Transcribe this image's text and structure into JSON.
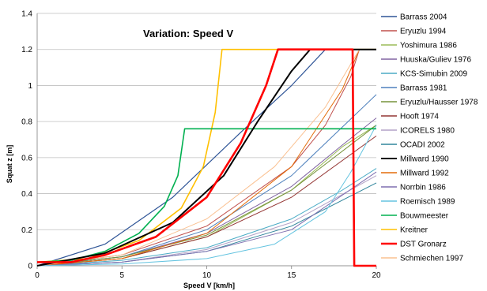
{
  "chart_data": {
    "type": "line",
    "title": "Variation: Speed V",
    "xlabel": "Speed V [km/h]",
    "ylabel": "Squat z [m]",
    "xlim": [
      0,
      20
    ],
    "ylim": [
      0,
      1.4
    ],
    "x_ticks": [
      "0",
      "5",
      "10",
      "15",
      "20"
    ],
    "y_ticks": [
      "0",
      "0.2",
      "0.4",
      "0.6",
      "0.8",
      "1",
      "1.2",
      "1.4"
    ],
    "grid": "horizontal",
    "legend": "right",
    "series": [
      {
        "name": "Barrass 2004",
        "color": "#2f5597",
        "width": 1.2,
        "points": [
          [
            0,
            0
          ],
          [
            4,
            0.12
          ],
          [
            8,
            0.38
          ],
          [
            12,
            0.74
          ],
          [
            15,
            1.0
          ],
          [
            17,
            1.2
          ],
          [
            20,
            1.2
          ]
        ]
      },
      {
        "name": "Eryuzlu 1994",
        "color": "#c0504d",
        "width": 1,
        "points": [
          [
            0,
            0
          ],
          [
            5,
            0.06
          ],
          [
            10,
            0.22
          ],
          [
            15,
            0.55
          ],
          [
            17,
            0.78
          ],
          [
            18.5,
            1.05
          ],
          [
            19,
            1.2
          ],
          [
            20,
            1.2
          ]
        ]
      },
      {
        "name": "Yoshimura 1986",
        "color": "#9bbb59",
        "width": 1,
        "points": [
          [
            0,
            0
          ],
          [
            5,
            0.04
          ],
          [
            10,
            0.16
          ],
          [
            15,
            0.42
          ],
          [
            18,
            0.66
          ],
          [
            20,
            0.78
          ]
        ]
      },
      {
        "name": "Huuska/Guliev 1976",
        "color": "#8064a2",
        "width": 1,
        "points": [
          [
            0,
            0
          ],
          [
            5,
            0.05
          ],
          [
            10,
            0.18
          ],
          [
            15,
            0.44
          ],
          [
            18,
            0.67
          ],
          [
            20,
            0.82
          ]
        ]
      },
      {
        "name": "KCS-Simubin 2009",
        "color": "#4bacc6",
        "width": 1,
        "points": [
          [
            0,
            0
          ],
          [
            5,
            0.03
          ],
          [
            10,
            0.1
          ],
          [
            15,
            0.26
          ],
          [
            18,
            0.42
          ],
          [
            20,
            0.54
          ]
        ]
      },
      {
        "name": "Barrass 1981",
        "color": "#4f81bd",
        "width": 1,
        "points": [
          [
            0,
            0
          ],
          [
            5,
            0.05
          ],
          [
            10,
            0.2
          ],
          [
            15,
            0.5
          ],
          [
            20,
            0.95
          ]
        ]
      },
      {
        "name": "Eryuzlu/Hausser 1978",
        "color": "#77933c",
        "width": 1,
        "points": [
          [
            0,
            0
          ],
          [
            5,
            0.05
          ],
          [
            10,
            0.17
          ],
          [
            15,
            0.42
          ],
          [
            20,
            0.78
          ]
        ]
      },
      {
        "name": "Hooft 1974",
        "color": "#943634",
        "width": 1,
        "points": [
          [
            0,
            0
          ],
          [
            5,
            0.04
          ],
          [
            10,
            0.16
          ],
          [
            15,
            0.38
          ],
          [
            20,
            0.72
          ]
        ]
      },
      {
        "name": "ICORELS 1980",
        "color": "#b3a2c7",
        "width": 1,
        "points": [
          [
            0,
            0
          ],
          [
            5,
            0.02
          ],
          [
            10,
            0.09
          ],
          [
            15,
            0.24
          ],
          [
            20,
            0.5
          ]
        ]
      },
      {
        "name": "OCADI 2002",
        "color": "#31859c",
        "width": 1,
        "points": [
          [
            0,
            0
          ],
          [
            5,
            0.02
          ],
          [
            10,
            0.08
          ],
          [
            15,
            0.22
          ],
          [
            20,
            0.46
          ]
        ]
      },
      {
        "name": "Millward 1990",
        "color": "#000000",
        "width": 2,
        "points": [
          [
            0,
            0
          ],
          [
            4,
            0.07
          ],
          [
            8,
            0.24
          ],
          [
            11,
            0.5
          ],
          [
            13,
            0.8
          ],
          [
            15,
            1.08
          ],
          [
            16.1,
            1.2
          ],
          [
            20,
            1.2
          ]
        ]
      },
      {
        "name": "Millward 1992",
        "color": "#e46c0a",
        "width": 1,
        "points": [
          [
            0,
            0
          ],
          [
            5,
            0.04
          ],
          [
            10,
            0.18
          ],
          [
            15,
            0.55
          ],
          [
            18,
            0.98
          ],
          [
            19,
            1.2
          ],
          [
            20,
            1.2
          ]
        ]
      },
      {
        "name": "Norrbin 1986",
        "color": "#7f6fb0",
        "width": 1,
        "points": [
          [
            0,
            0
          ],
          [
            5,
            0.02
          ],
          [
            10,
            0.08
          ],
          [
            15,
            0.2
          ],
          [
            20,
            0.52
          ]
        ]
      },
      {
        "name": "Roemisch 1989",
        "color": "#65c4e0",
        "width": 1,
        "points": [
          [
            0,
            0
          ],
          [
            5,
            0.01
          ],
          [
            10,
            0.04
          ],
          [
            14,
            0.12
          ],
          [
            17,
            0.3
          ],
          [
            18.5,
            0.52
          ],
          [
            20,
            0.78
          ]
        ]
      },
      {
        "name": "Bouwmeester",
        "color": "#00b050",
        "width": 1.6,
        "points": [
          [
            0,
            0.02
          ],
          [
            2,
            0.03
          ],
          [
            4,
            0.08
          ],
          [
            6,
            0.18
          ],
          [
            7.5,
            0.33
          ],
          [
            8.3,
            0.5
          ],
          [
            8.7,
            0.76
          ],
          [
            20,
            0.76
          ]
        ]
      },
      {
        "name": "Kreitner",
        "color": "#ffc000",
        "width": 1.6,
        "points": [
          [
            0,
            0.02
          ],
          [
            3,
            0.04
          ],
          [
            6,
            0.14
          ],
          [
            8.5,
            0.32
          ],
          [
            9.8,
            0.55
          ],
          [
            10.5,
            0.85
          ],
          [
            10.9,
            1.2
          ],
          [
            20,
            1.2
          ]
        ]
      },
      {
        "name": "DST Gronarz",
        "color": "#ff0000",
        "width": 2.6,
        "points": [
          [
            0,
            0.02
          ],
          [
            2,
            0.02
          ],
          [
            4,
            0.06
          ],
          [
            7,
            0.16
          ],
          [
            10,
            0.38
          ],
          [
            12,
            0.68
          ],
          [
            13.5,
            1.0
          ],
          [
            14.2,
            1.2
          ],
          [
            18.6,
            1.2
          ],
          [
            18.7,
            0
          ],
          [
            20,
            0
          ]
        ]
      },
      {
        "name": "Schmiechen 1997",
        "color": "#fac090",
        "width": 1,
        "points": [
          [
            0,
            0
          ],
          [
            5,
            0.06
          ],
          [
            10,
            0.26
          ],
          [
            14,
            0.55
          ],
          [
            17,
            0.88
          ],
          [
            19,
            1.2
          ],
          [
            20,
            1.2
          ]
        ]
      }
    ]
  }
}
